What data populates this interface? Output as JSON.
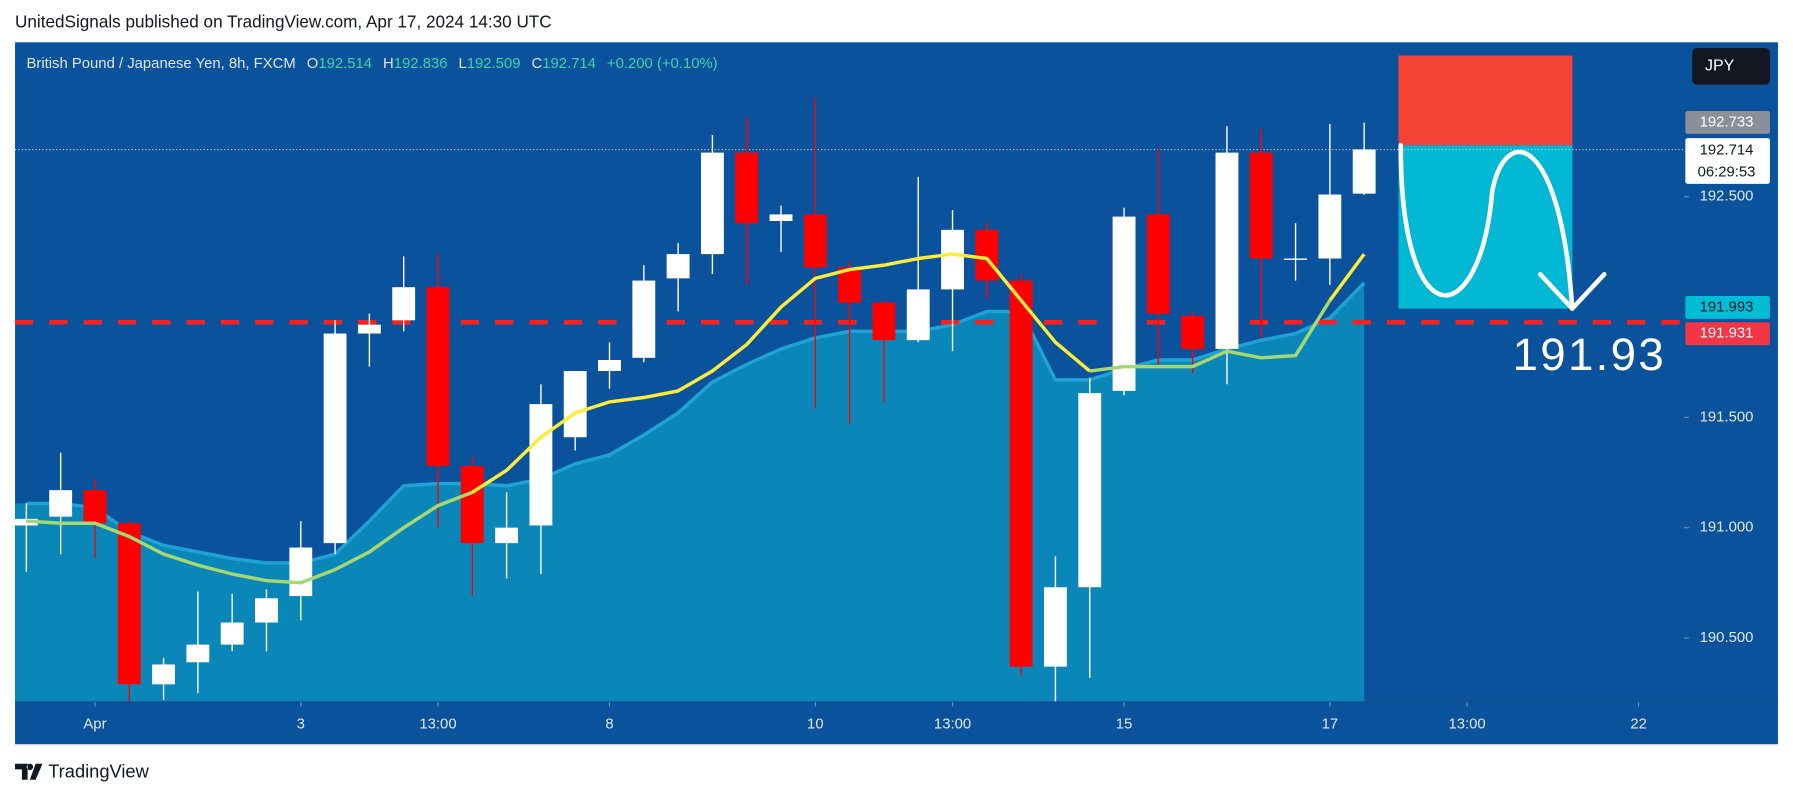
{
  "header": {
    "title": "UnitedSignals published on TradingView.com, Apr 17, 2024 14:30 UTC"
  },
  "footer": {
    "brand": "TradingView"
  },
  "currency_button": "JPY",
  "chart_data": {
    "type": "candlestick",
    "legend": {
      "symbol": "British Pound / Japanese Yen, 8h, FXCM",
      "ohlc_labels": [
        "O",
        "H",
        "L",
        "C"
      ],
      "open": 192.514,
      "high": 192.836,
      "low": 192.509,
      "close": 192.714,
      "change": "+0.200 (+0.10%)"
    },
    "up_color": "#ffffff",
    "down_color": "#ff0000",
    "candles": {
      "open": [
        191.01,
        191.05,
        191.17,
        191.02,
        190.29,
        190.39,
        190.47,
        190.57,
        190.69,
        190.93,
        191.88,
        191.94,
        192.09,
        191.28,
        190.93,
        191.01,
        191.41,
        191.71,
        191.77,
        192.13,
        192.24,
        192.7,
        192.39,
        192.42,
        192.18,
        192.02,
        191.85,
        192.08,
        192.35,
        192.12,
        190.37,
        190.73,
        191.62,
        192.42,
        191.96,
        191.81,
        192.7,
        192.22,
        192.22,
        192.514
      ],
      "high": [
        191.11,
        191.34,
        191.22,
        191.03,
        190.41,
        190.71,
        190.7,
        190.72,
        191.03,
        191.94,
        191.97,
        192.23,
        192.24,
        191.32,
        191.16,
        191.65,
        191.71,
        191.84,
        192.19,
        192.29,
        192.78,
        192.86,
        192.46,
        192.95,
        192.21,
        192.03,
        192.59,
        192.44,
        192.38,
        192.15,
        190.87,
        191.68,
        192.45,
        192.72,
        191.98,
        192.82,
        192.81,
        192.38,
        192.83,
        192.836
      ],
      "low": [
        190.8,
        190.88,
        190.86,
        190.21,
        190.22,
        190.25,
        190.44,
        190.44,
        190.58,
        190.88,
        191.73,
        191.89,
        191.0,
        190.69,
        190.77,
        190.79,
        191.35,
        191.63,
        191.75,
        191.98,
        192.15,
        192.1,
        192.25,
        191.54,
        191.47,
        191.57,
        191.84,
        191.8,
        192.04,
        190.33,
        190.21,
        190.32,
        191.6,
        191.72,
        191.7,
        191.65,
        191.86,
        192.12,
        192.1,
        192.509
      ],
      "close": [
        191.04,
        191.17,
        191.02,
        190.29,
        190.38,
        190.47,
        190.57,
        190.68,
        190.91,
        191.88,
        191.92,
        192.09,
        191.28,
        190.93,
        191.0,
        191.56,
        191.71,
        191.76,
        192.12,
        192.24,
        192.7,
        192.38,
        192.42,
        192.18,
        192.02,
        191.85,
        192.08,
        192.35,
        192.12,
        190.37,
        190.73,
        191.61,
        192.41,
        191.97,
        191.81,
        192.7,
        192.22,
        192.22,
        192.51,
        192.714
      ]
    },
    "area": {
      "color": "#0b86b9",
      "edge_color": "#1fa3d6",
      "values": [
        191.11,
        191.11,
        191.09,
        190.98,
        190.92,
        190.89,
        190.86,
        190.84,
        190.84,
        190.88,
        191.03,
        191.19,
        191.2,
        191.2,
        191.19,
        191.22,
        191.29,
        191.33,
        191.42,
        191.52,
        191.66,
        191.74,
        191.81,
        191.86,
        191.89,
        191.89,
        191.89,
        191.92,
        191.98,
        191.98,
        191.67,
        191.67,
        191.72,
        191.76,
        191.76,
        191.81,
        191.85,
        191.88,
        191.95,
        192.11
      ]
    },
    "series": [
      {
        "color": "#a5d86e",
        "values": [
          191.03,
          191.02,
          191.02,
          190.96,
          190.88,
          190.83,
          190.79,
          190.76,
          190.75,
          190.81,
          190.89,
          191.0,
          191.1,
          191.16,
          null,
          null,
          null,
          null,
          null,
          null,
          null,
          null,
          null,
          null,
          null,
          null,
          null,
          null,
          null,
          null,
          null,
          191.71,
          191.73,
          191.73,
          191.73,
          191.8,
          191.77,
          191.78,
          192.03,
          null
        ]
      },
      {
        "color": "#ffeb3b",
        "values": [
          null,
          null,
          null,
          null,
          null,
          null,
          null,
          null,
          null,
          null,
          null,
          null,
          null,
          191.16,
          191.26,
          191.41,
          191.52,
          191.57,
          191.59,
          191.62,
          191.71,
          191.83,
          192.0,
          192.13,
          192.17,
          192.19,
          192.22,
          192.24,
          192.22,
          192.03,
          191.84,
          191.71,
          null,
          null,
          null,
          null,
          null,
          null,
          192.03,
          192.24
        ]
      }
    ],
    "xlim": [
      -0.33,
      48.33
    ],
    "xticks": [
      {
        "value": 2,
        "label": "Apr"
      },
      {
        "value": 8,
        "label": "3"
      },
      {
        "value": 12,
        "label": "13:00"
      },
      {
        "value": 17,
        "label": "8"
      },
      {
        "value": 23,
        "label": "10"
      },
      {
        "value": 27,
        "label": "13:00"
      },
      {
        "value": 32,
        "label": "15"
      },
      {
        "value": 38,
        "label": "17"
      },
      {
        "value": 42,
        "label": "13:00"
      },
      {
        "value": 47,
        "label": "22"
      }
    ],
    "ylim": [
      190.21,
      193.2
    ],
    "yticks": [
      {
        "value": 192.5,
        "label": "192.500"
      },
      {
        "value": 191.5,
        "label": "191.500"
      },
      {
        "value": 191.0,
        "label": "191.000"
      },
      {
        "value": 190.5,
        "label": "190.500"
      }
    ],
    "price_labels": [
      {
        "value": 192.733,
        "bg": "#8a8f99",
        "fg": "#ffffff"
      },
      {
        "value": 192.714,
        "bg": "#ffffff",
        "fg": "#131722",
        "countdown": "06:29:53"
      },
      {
        "value": 191.993,
        "bg": "#00bcd4",
        "fg": "#131722"
      },
      {
        "value": 191.931,
        "bg": "#f23645",
        "fg": "#ffffff"
      }
    ],
    "level_color": "#ff1f1f",
    "position": {
      "x_start": 40,
      "x_end": 45.07,
      "stop": 193.14,
      "entry": 192.733,
      "target": 191.993,
      "stop_color": "#f44336",
      "target_color": "#00b8d4"
    },
    "annotation": "191.93"
  }
}
